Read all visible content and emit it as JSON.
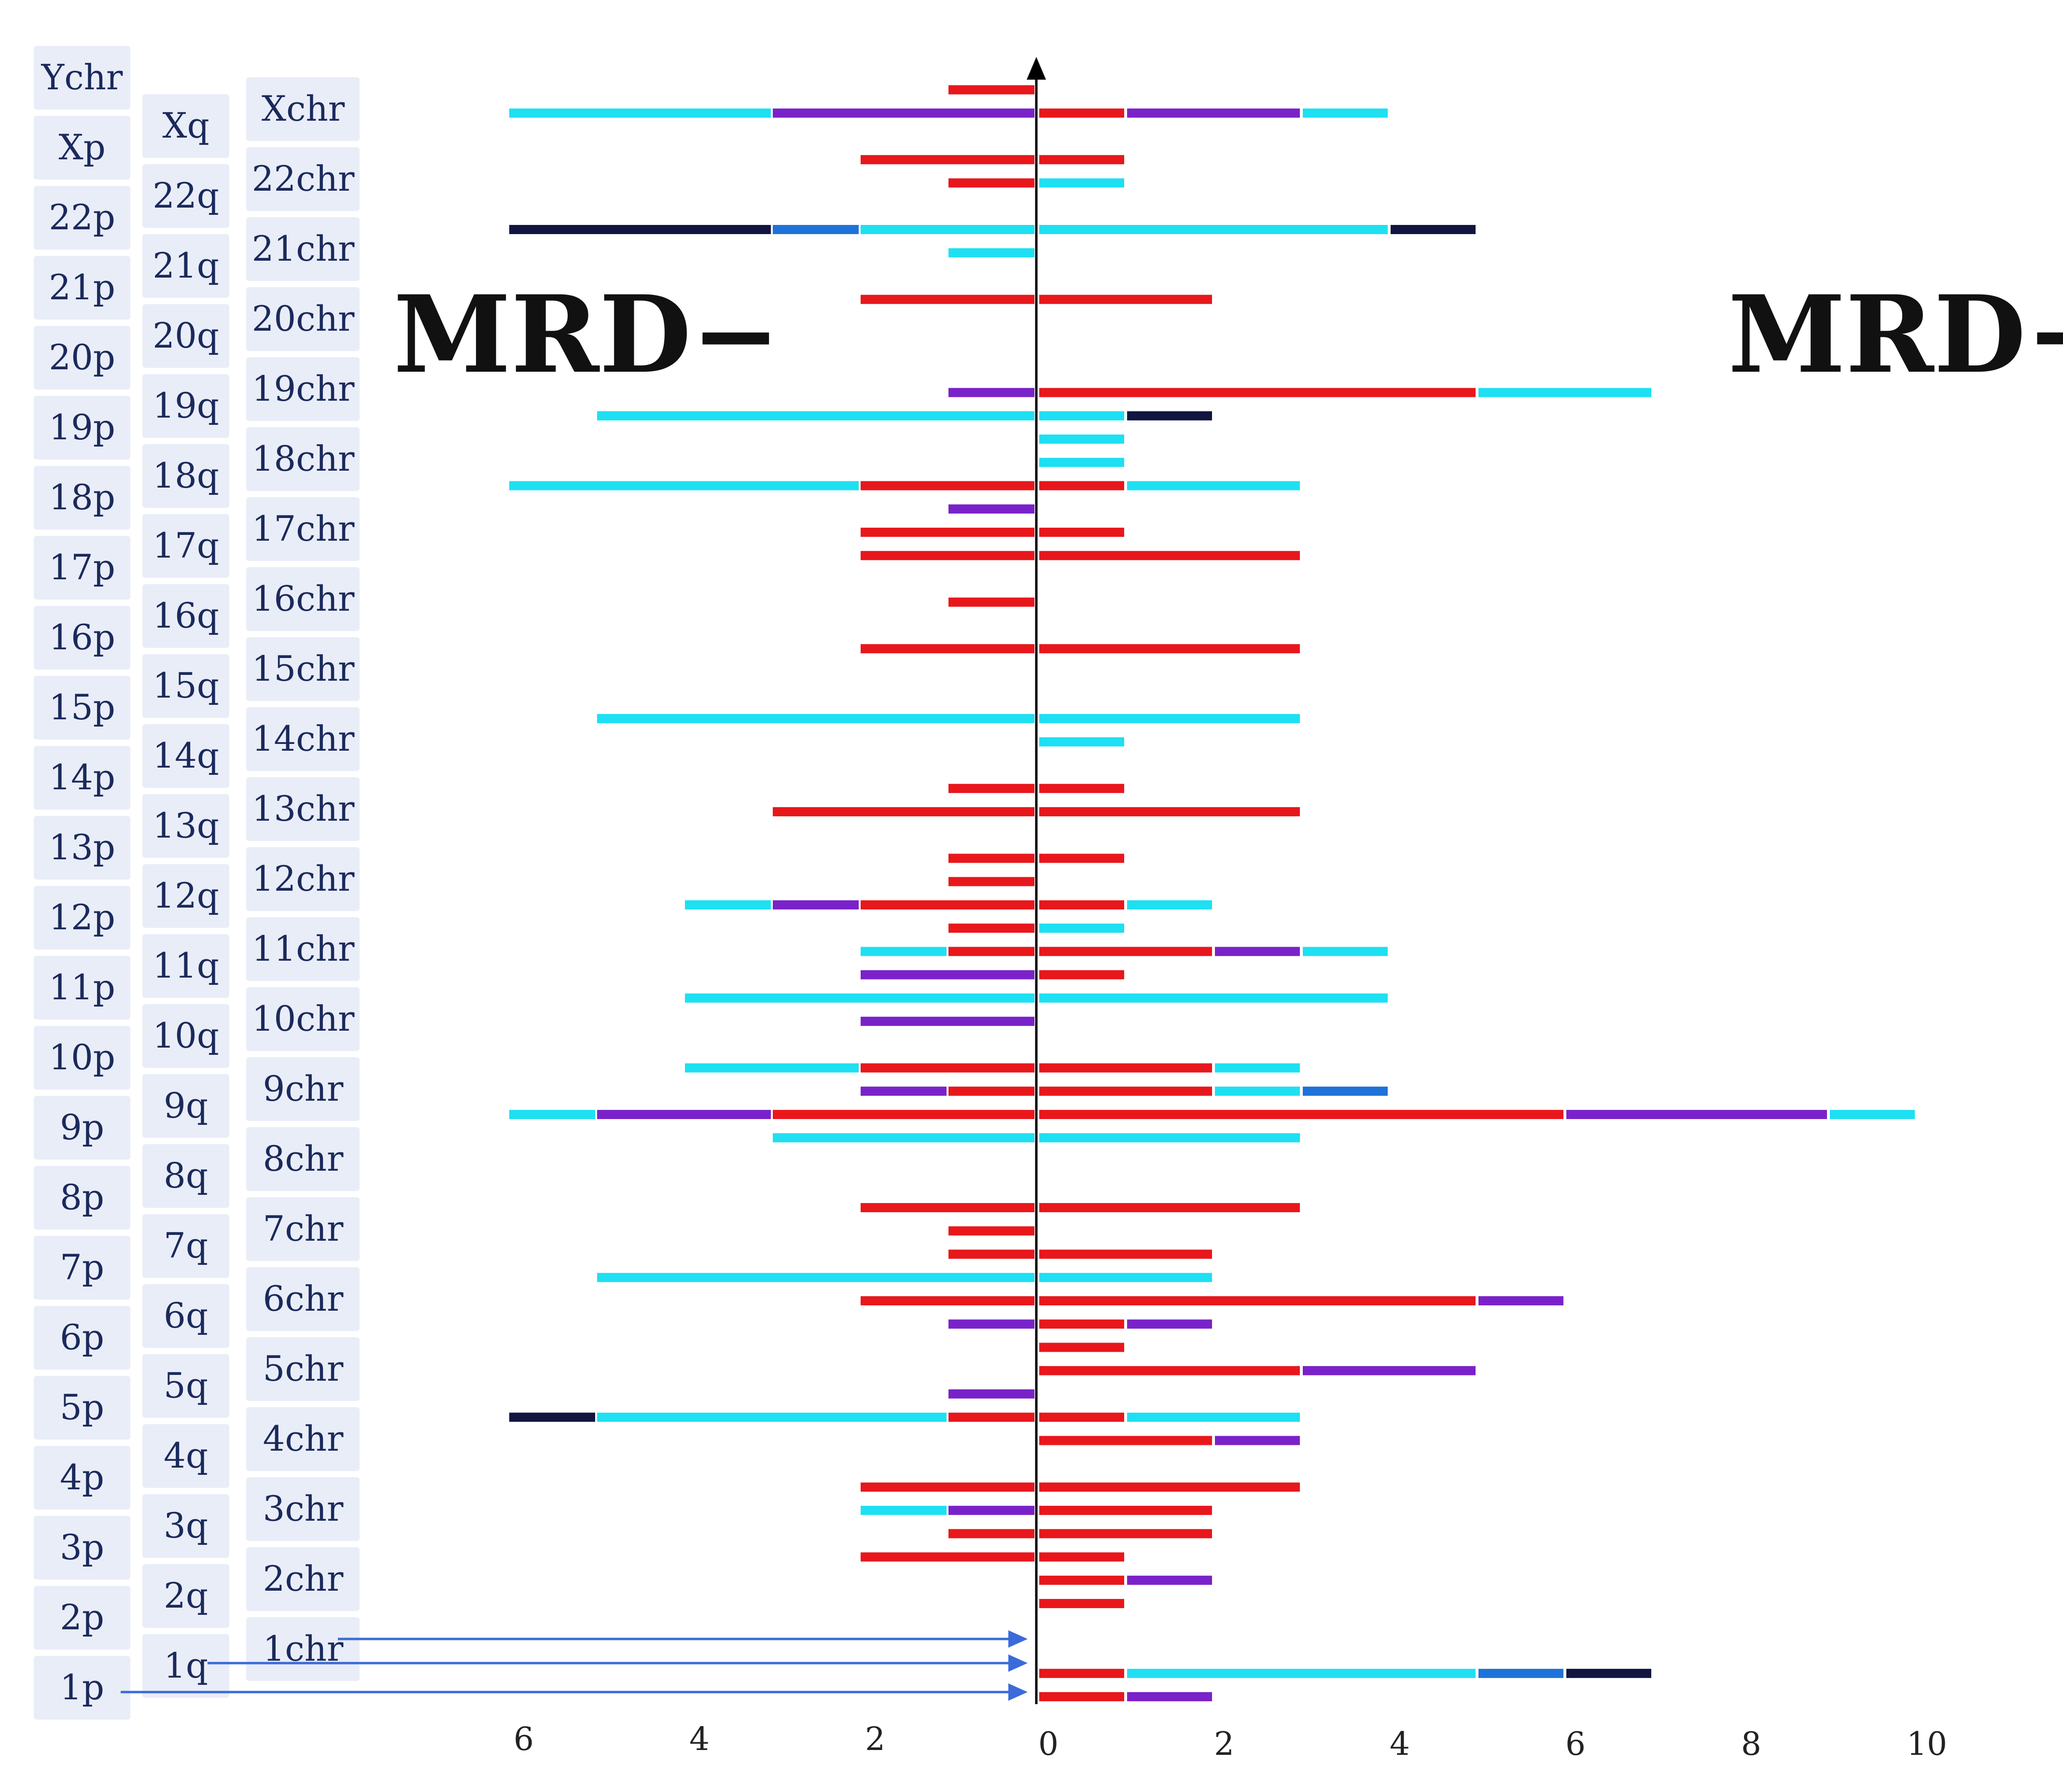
{
  "chart_data": {
    "type": "bar",
    "subtype": "diverging-stacked-horizontal",
    "left_title": "MRD−",
    "right_title": "MRD+",
    "x_tick_labels_left": [
      "6",
      "4",
      "2"
    ],
    "x_tick_labels_right": [
      "0",
      "2",
      "4",
      "6",
      "8",
      "10"
    ],
    "xlim_left": [
      0,
      6
    ],
    "xlim_right": [
      0,
      10
    ],
    "colors": {
      "red": "#e8171c",
      "cyan": "#1ee0f2",
      "purple": "#7a22c9",
      "navy": "#111640",
      "blue": "#1f72d8",
      "axis": "#000000",
      "arrow": "#3a6bd9",
      "label_bg": "#e9edf7",
      "label_text": "#1b2a5c"
    },
    "p_arm_labels": [
      "Ychr",
      "Xp",
      "22p",
      "21p",
      "20p",
      "19p",
      "18p",
      "17p",
      "16p",
      "15p",
      "14p",
      "13p",
      "12p",
      "11p",
      "10p",
      "9p",
      "8p",
      "7p",
      "6p",
      "5p",
      "4p",
      "3p",
      "2p",
      "1p"
    ],
    "q_arm_labels": [
      "Xq",
      "22q",
      "21q",
      "20q",
      "19q",
      "18q",
      "17q",
      "16q",
      "15q",
      "14q",
      "13q",
      "12q",
      "11q",
      "10q",
      "9q",
      "8q",
      "7q",
      "6q",
      "5q",
      "4q",
      "3q",
      "2q",
      "1q"
    ],
    "chr_labels": [
      "Xchr",
      "22chr",
      "21chr",
      "20chr",
      "19chr",
      "18chr",
      "17chr",
      "16chr",
      "15chr",
      "14chr",
      "13chr",
      "12chr",
      "11chr",
      "10chr",
      "9chr",
      "8chr",
      "7chr",
      "6chr",
      "5chr",
      "4chr",
      "3chr",
      "2chr",
      "1chr"
    ],
    "rows": [
      {
        "left": [
          [
            "red",
            1
          ]
        ],
        "right": []
      },
      {
        "left": [
          [
            "purple",
            3
          ],
          [
            "cyan",
            3
          ]
        ],
        "right": [
          [
            "red",
            1
          ],
          [
            "purple",
            2
          ],
          [
            "cyan",
            1
          ]
        ]
      },
      {
        "left": [],
        "right": []
      },
      {
        "left": [
          [
            "red",
            2
          ]
        ],
        "right": [
          [
            "red",
            1
          ]
        ]
      },
      {
        "left": [
          [
            "red",
            1
          ]
        ],
        "right": [
          [
            "cyan",
            1
          ]
        ]
      },
      {
        "left": [],
        "right": []
      },
      {
        "left": [
          [
            "cyan",
            2
          ],
          [
            "blue",
            1
          ],
          [
            "navy",
            3
          ]
        ],
        "right": [
          [
            "cyan",
            4
          ],
          [
            "navy",
            1
          ]
        ]
      },
      {
        "left": [
          [
            "cyan",
            1
          ]
        ],
        "right": []
      },
      {
        "left": [],
        "right": []
      },
      {
        "left": [
          [
            "red",
            2
          ]
        ],
        "right": [
          [
            "red",
            2
          ]
        ]
      },
      {
        "left": [],
        "right": []
      },
      {
        "left": [],
        "right": []
      },
      {
        "left": [],
        "right": []
      },
      {
        "left": [
          [
            "purple",
            1
          ]
        ],
        "right": [
          [
            "red",
            5
          ],
          [
            "cyan",
            2
          ]
        ]
      },
      {
        "left": [
          [
            "cyan",
            5
          ]
        ],
        "right": [
          [
            "cyan",
            1
          ],
          [
            "navy",
            1
          ]
        ]
      },
      {
        "left": [],
        "right": [
          [
            "cyan",
            1
          ]
        ]
      },
      {
        "left": [],
        "right": [
          [
            "cyan",
            1
          ]
        ]
      },
      {
        "left": [
          [
            "red",
            2
          ],
          [
            "cyan",
            4
          ]
        ],
        "right": [
          [
            "red",
            1
          ],
          [
            "cyan",
            2
          ]
        ]
      },
      {
        "left": [
          [
            "purple",
            1
          ]
        ],
        "right": []
      },
      {
        "left": [
          [
            "red",
            2
          ]
        ],
        "right": [
          [
            "red",
            1
          ]
        ]
      },
      {
        "left": [
          [
            "red",
            2
          ]
        ],
        "right": [
          [
            "red",
            3
          ]
        ]
      },
      {
        "left": [],
        "right": []
      },
      {
        "left": [
          [
            "red",
            1
          ]
        ],
        "right": []
      },
      {
        "left": [],
        "right": []
      },
      {
        "left": [
          [
            "red",
            2
          ]
        ],
        "right": [
          [
            "red",
            3
          ]
        ]
      },
      {
        "left": [],
        "right": []
      },
      {
        "left": [],
        "right": []
      },
      {
        "left": [
          [
            "cyan",
            5
          ]
        ],
        "right": [
          [
            "cyan",
            3
          ]
        ]
      },
      {
        "left": [],
        "right": [
          [
            "cyan",
            1
          ]
        ]
      },
      {
        "left": [],
        "right": []
      },
      {
        "left": [
          [
            "red",
            1
          ]
        ],
        "right": [
          [
            "red",
            1
          ]
        ]
      },
      {
        "left": [
          [
            "red",
            3
          ]
        ],
        "right": [
          [
            "red",
            3
          ]
        ]
      },
      {
        "left": [],
        "right": []
      },
      {
        "left": [
          [
            "red",
            1
          ]
        ],
        "right": [
          [
            "red",
            1
          ]
        ]
      },
      {
        "left": [
          [
            "red",
            1
          ]
        ],
        "right": []
      },
      {
        "left": [
          [
            "red",
            2
          ],
          [
            "purple",
            1
          ],
          [
            "cyan",
            1
          ]
        ],
        "right": [
          [
            "red",
            1
          ],
          [
            "cyan",
            1
          ]
        ]
      },
      {
        "left": [
          [
            "red",
            1
          ]
        ],
        "right": [
          [
            "cyan",
            1
          ]
        ]
      },
      {
        "left": [
          [
            "red",
            1
          ],
          [
            "cyan",
            1
          ]
        ],
        "right": [
          [
            "red",
            2
          ],
          [
            "purple",
            1
          ],
          [
            "cyan",
            1
          ]
        ]
      },
      {
        "left": [
          [
            "purple",
            2
          ]
        ],
        "right": [
          [
            "red",
            1
          ]
        ]
      },
      {
        "left": [
          [
            "cyan",
            4
          ]
        ],
        "right": [
          [
            "cyan",
            4
          ]
        ]
      },
      {
        "left": [
          [
            "purple",
            2
          ]
        ],
        "right": []
      },
      {
        "left": [],
        "right": []
      },
      {
        "left": [
          [
            "red",
            2
          ],
          [
            "cyan",
            2
          ]
        ],
        "right": [
          [
            "red",
            2
          ],
          [
            "cyan",
            1
          ]
        ]
      },
      {
        "left": [
          [
            "red",
            1
          ],
          [
            "purple",
            1
          ]
        ],
        "right": [
          [
            "red",
            2
          ],
          [
            "cyan",
            1
          ],
          [
            "blue",
            1
          ]
        ]
      },
      {
        "left": [
          [
            "red",
            3
          ],
          [
            "purple",
            2
          ],
          [
            "cyan",
            1
          ]
        ],
        "right": [
          [
            "red",
            6
          ],
          [
            "purple",
            3
          ],
          [
            "cyan",
            1
          ]
        ]
      },
      {
        "left": [
          [
            "cyan",
            3
          ]
        ],
        "right": [
          [
            "cyan",
            3
          ]
        ]
      },
      {
        "left": [],
        "right": []
      },
      {
        "left": [],
        "right": []
      },
      {
        "left": [
          [
            "red",
            2
          ]
        ],
        "right": [
          [
            "red",
            3
          ]
        ]
      },
      {
        "left": [
          [
            "red",
            1
          ]
        ],
        "right": []
      },
      {
        "left": [
          [
            "red",
            1
          ]
        ],
        "right": [
          [
            "red",
            2
          ]
        ]
      },
      {
        "left": [
          [
            "cyan",
            5
          ]
        ],
        "right": [
          [
            "cyan",
            2
          ]
        ]
      },
      {
        "left": [
          [
            "red",
            2
          ]
        ],
        "right": [
          [
            "red",
            5
          ],
          [
            "purple",
            1
          ]
        ]
      },
      {
        "left": [
          [
            "purple",
            1
          ]
        ],
        "right": [
          [
            "red",
            1
          ],
          [
            "purple",
            1
          ]
        ]
      },
      {
        "left": [],
        "right": [
          [
            "red",
            1
          ]
        ]
      },
      {
        "left": [],
        "right": [
          [
            "red",
            3
          ],
          [
            "purple",
            2
          ]
        ]
      },
      {
        "left": [
          [
            "purple",
            1
          ]
        ],
        "right": []
      },
      {
        "left": [
          [
            "red",
            1
          ],
          [
            "cyan",
            4
          ],
          [
            "navy",
            1
          ]
        ],
        "right": [
          [
            "red",
            1
          ],
          [
            "cyan",
            2
          ]
        ]
      },
      {
        "left": [],
        "right": [
          [
            "red",
            2
          ],
          [
            "purple",
            1
          ]
        ]
      },
      {
        "left": [],
        "right": []
      },
      {
        "left": [
          [
            "red",
            2
          ]
        ],
        "right": [
          [
            "red",
            3
          ]
        ]
      },
      {
        "left": [
          [
            "purple",
            1
          ],
          [
            "cyan",
            1
          ]
        ],
        "right": [
          [
            "red",
            2
          ]
        ]
      },
      {
        "left": [
          [
            "red",
            1
          ]
        ],
        "right": [
          [
            "red",
            2
          ]
        ]
      },
      {
        "left": [
          [
            "red",
            2
          ]
        ],
        "right": [
          [
            "red",
            1
          ]
        ]
      },
      {
        "left": [],
        "right": [
          [
            "red",
            1
          ],
          [
            "purple",
            1
          ]
        ]
      },
      {
        "left": [],
        "right": [
          [
            "red",
            1
          ]
        ]
      },
      {
        "left": [],
        "right": []
      },
      {
        "left": [],
        "right": []
      },
      {
        "left": [],
        "right": [
          [
            "red",
            1
          ],
          [
            "cyan",
            4
          ],
          [
            "blue",
            1
          ],
          [
            "navy",
            1
          ]
        ]
      },
      {
        "left": [],
        "right": [
          [
            "red",
            1
          ],
          [
            "purple",
            1
          ]
        ]
      }
    ]
  }
}
